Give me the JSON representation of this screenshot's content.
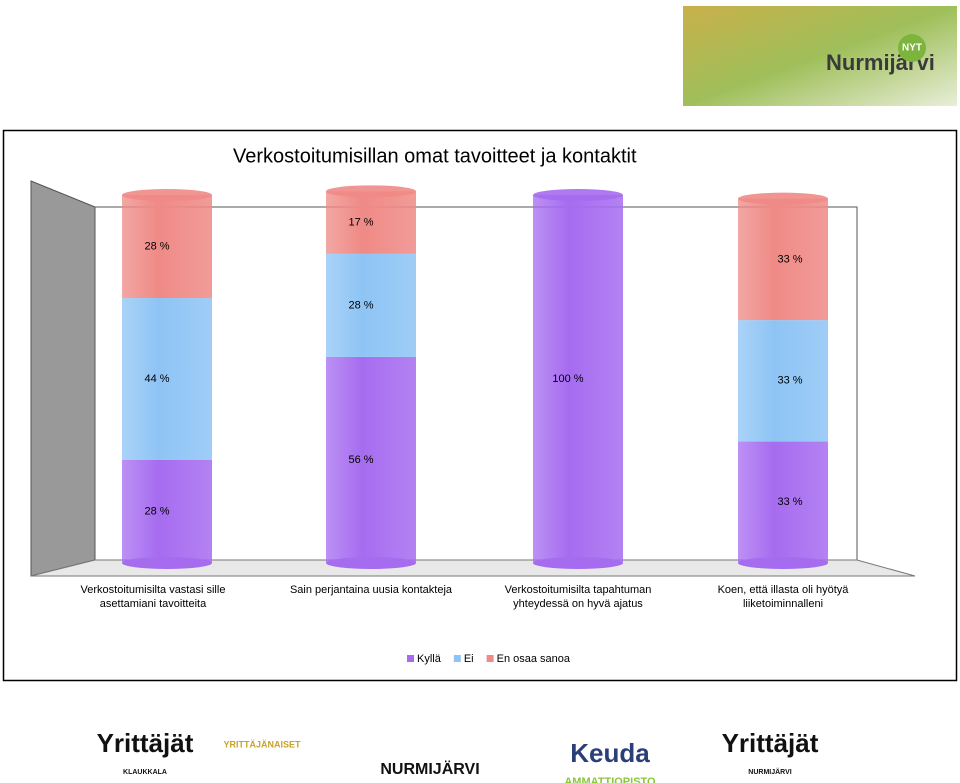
{
  "header_image": {
    "name": "Nurmijärvi",
    "badge": "NYT"
  },
  "chart_data": {
    "type": "stacked_cylinder",
    "title": "Verkostoitumisillan omat tavoitteet ja kontaktit",
    "categories": [
      "Verkostoitumisilta vastasi sille asettamiani tavoitteita",
      "Sain perjantaina uusia kontakteja",
      "Verkostoitumisilta tapahtuman yhteydessä on hyvä ajatus",
      "Koen, että illasta oli hyötyä liiketoiminnalleni"
    ],
    "ylim": [
      0,
      100
    ],
    "series": [
      {
        "name": "Kyllä",
        "color": "#a66cf0",
        "values": [
          28,
          56,
          100,
          33
        ],
        "value_labels": [
          "28 %",
          "56 %",
          "100 %",
          "33 %"
        ]
      },
      {
        "name": "Ei",
        "color": "#8ec4f5",
        "values": [
          44,
          28,
          0,
          33
        ],
        "value_labels": [
          "44 %",
          "28 %",
          null,
          "33 %"
        ]
      },
      {
        "name": "En osaa sanoa",
        "color": "#ef8a86",
        "values": [
          28,
          17,
          0,
          33
        ],
        "value_labels": [
          "28 %",
          "17 %",
          null,
          "33 %"
        ]
      }
    ]
  },
  "footer_logos": [
    {
      "name": "Yrittäjät",
      "sub": "KLAUKKALA"
    },
    {
      "name": "YRITTÄJÄNAISET"
    },
    {
      "name": "NURMIJÄRVI"
    },
    {
      "name": "Keuda",
      "sub": "AMMATTIOPISTO"
    },
    {
      "name": "Yrittäjät",
      "sub": "NURMIJÄRVI"
    }
  ]
}
